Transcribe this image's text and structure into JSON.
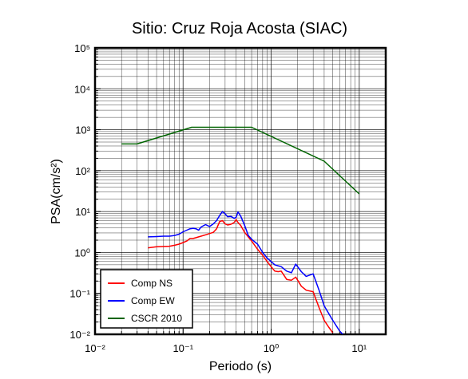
{
  "chart_data": {
    "type": "line",
    "title": "Sitio: Cruz Roja Acosta (SIAC)",
    "xlabel": "Periodo (s)",
    "ylabel": "PSA(cm/s²)",
    "xscale": "log",
    "yscale": "log",
    "xlim": [
      0.01,
      20
    ],
    "ylim": [
      0.01,
      100000
    ],
    "x_ticks": [
      "10⁻²",
      "10⁻¹",
      "10⁰",
      "10¹"
    ],
    "y_ticks": [
      "10⁻²",
      "10⁻¹",
      "10⁰",
      "10¹",
      "10²",
      "10³",
      "10⁴",
      "10⁵"
    ],
    "grid": true,
    "legend_position": "bottom-left",
    "series": [
      {
        "name": "Comp NS",
        "color": "#ff0000",
        "x": [
          0.04,
          0.05,
          0.06,
          0.07,
          0.08,
          0.09,
          0.1,
          0.11,
          0.12,
          0.13,
          0.14,
          0.15,
          0.16,
          0.18,
          0.2,
          0.22,
          0.24,
          0.26,
          0.28,
          0.3,
          0.32,
          0.35,
          0.38,
          0.4,
          0.42,
          0.45,
          0.5,
          0.55,
          0.6,
          0.7,
          0.8,
          0.9,
          1.0,
          1.1,
          1.2,
          1.3,
          1.5,
          1.7,
          1.9,
          2.2,
          2.5,
          3.0,
          3.5,
          4.0,
          4.5,
          5.0
        ],
        "values": [
          1.3,
          1.38,
          1.4,
          1.42,
          1.5,
          1.6,
          1.75,
          1.9,
          2.2,
          2.2,
          2.3,
          2.4,
          2.5,
          2.7,
          2.9,
          3.1,
          3.8,
          5.7,
          6.0,
          5.0,
          4.7,
          4.9,
          5.4,
          6.4,
          5.4,
          4.6,
          3.1,
          2.4,
          1.9,
          1.2,
          0.85,
          0.6,
          0.45,
          0.35,
          0.34,
          0.35,
          0.22,
          0.21,
          0.25,
          0.15,
          0.12,
          0.11,
          0.045,
          0.022,
          0.015,
          0.011
        ]
      },
      {
        "name": "Comp EW",
        "color": "#0000ff",
        "x": [
          0.04,
          0.05,
          0.06,
          0.07,
          0.08,
          0.09,
          0.1,
          0.11,
          0.12,
          0.13,
          0.14,
          0.15,
          0.16,
          0.18,
          0.2,
          0.22,
          0.24,
          0.26,
          0.28,
          0.3,
          0.32,
          0.35,
          0.38,
          0.4,
          0.42,
          0.45,
          0.5,
          0.55,
          0.6,
          0.7,
          0.8,
          0.9,
          1.0,
          1.1,
          1.2,
          1.3,
          1.5,
          1.7,
          1.9,
          2.2,
          2.5,
          3.0,
          3.5,
          4.0,
          5.0,
          6.0,
          6.5
        ],
        "values": [
          2.4,
          2.45,
          2.5,
          2.5,
          2.6,
          2.8,
          3.2,
          3.5,
          3.8,
          3.9,
          3.8,
          3.5,
          4.2,
          4.8,
          4.3,
          5.0,
          6.0,
          8.0,
          10.0,
          8.8,
          7.5,
          7.6,
          6.8,
          7.3,
          9.8,
          7.8,
          4.6,
          2.6,
          2.1,
          1.6,
          1.0,
          0.73,
          0.6,
          0.5,
          0.47,
          0.45,
          0.35,
          0.32,
          0.52,
          0.34,
          0.26,
          0.3,
          0.12,
          0.05,
          0.022,
          0.012,
          0.01
        ]
      },
      {
        "name": "CSCR 2010",
        "color": "#006400",
        "x": [
          0.02,
          0.03,
          0.125,
          0.6,
          4.0,
          10.0
        ],
        "values": [
          450,
          450,
          1150,
          1150,
          170,
          27
        ]
      }
    ]
  }
}
